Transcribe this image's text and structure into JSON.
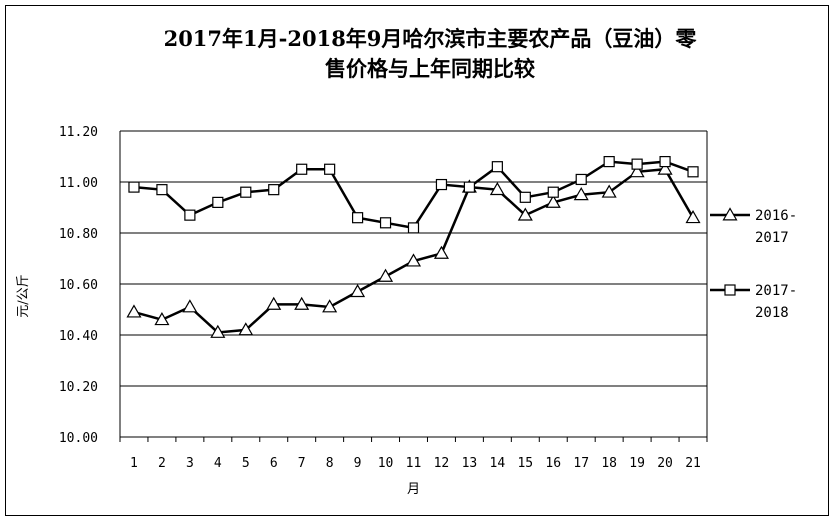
{
  "chart_data": {
    "type": "line",
    "title": "2017年1月-2018年9月哈尔滨市主要农产品（豆油）零售价格与上年同期比较",
    "title_lines": [
      "2017年1月-2018年9月哈尔滨市主要农产品（豆油）零",
      "售价格与上年同期比较"
    ],
    "xlabel": "月",
    "ylabel": "元/公斤",
    "ylim": [
      10.0,
      11.2
    ],
    "yticks": [
      "10.00",
      "10.20",
      "10.40",
      "10.60",
      "10.80",
      "11.00",
      "11.20"
    ],
    "x": [
      "1",
      "2",
      "3",
      "4",
      "5",
      "6",
      "7",
      "8",
      "9",
      "10",
      "11",
      "12",
      "13",
      "14",
      "15",
      "16",
      "17",
      "18",
      "19",
      "20",
      "21"
    ],
    "grid": true,
    "legend_position": "right",
    "series": [
      {
        "name_lines": [
          "2016-",
          "2017"
        ],
        "marker": "triangle",
        "color": "#000000",
        "values": [
          10.49,
          10.46,
          10.51,
          10.41,
          10.42,
          10.52,
          10.52,
          10.51,
          10.57,
          10.63,
          10.69,
          10.72,
          10.98,
          10.97,
          10.87,
          10.92,
          10.95,
          10.96,
          11.04,
          11.05,
          10.86
        ]
      },
      {
        "name_lines": [
          "2017-",
          "2018"
        ],
        "marker": "square",
        "color": "#000000",
        "values": [
          10.98,
          10.97,
          10.87,
          10.92,
          10.96,
          10.97,
          11.05,
          11.05,
          10.86,
          10.84,
          10.82,
          10.99,
          10.98,
          11.06,
          10.94,
          10.96,
          11.01,
          11.08,
          11.07,
          11.08,
          11.04
        ]
      }
    ]
  }
}
